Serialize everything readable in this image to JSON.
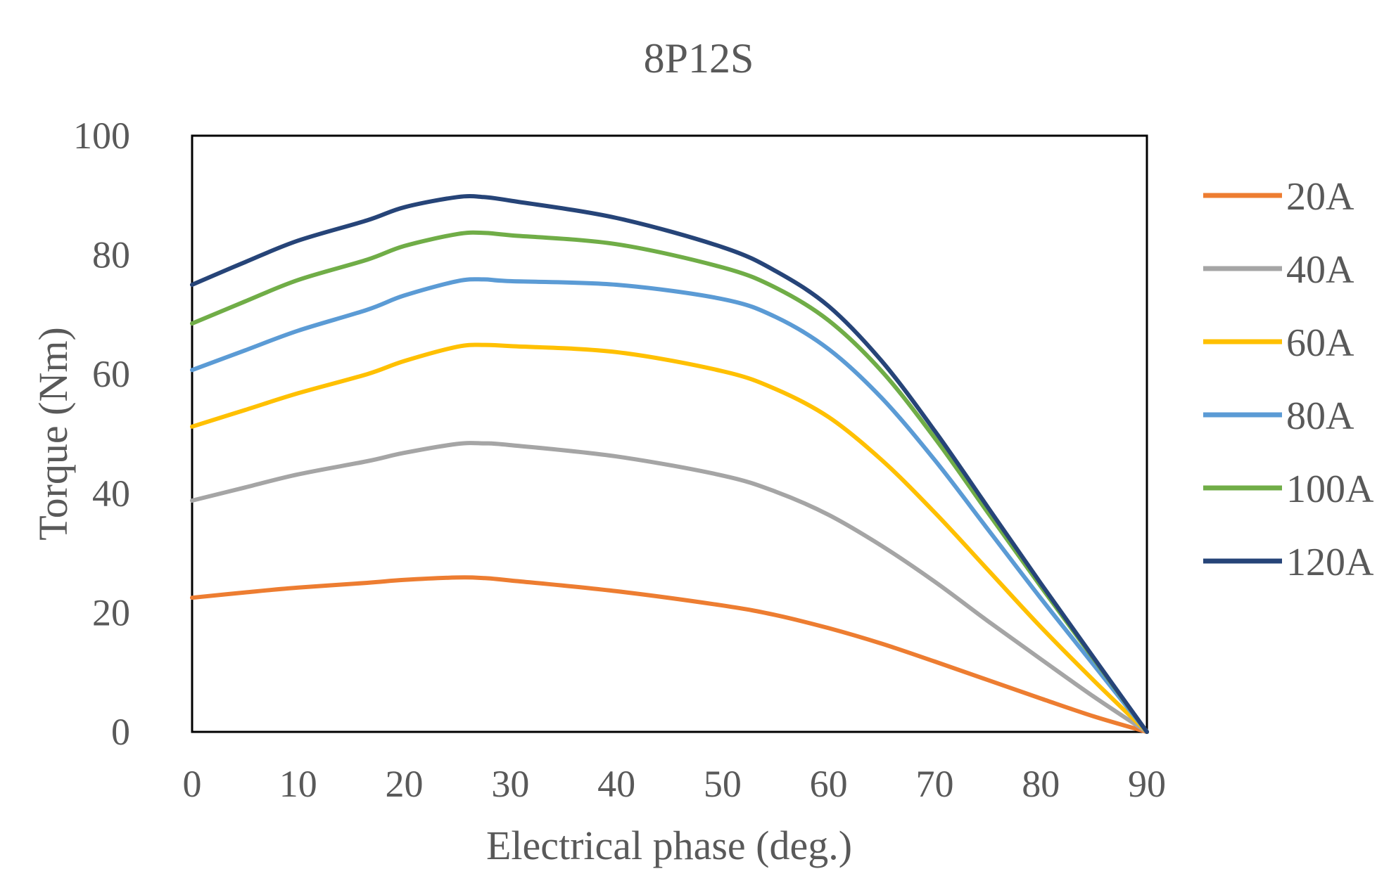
{
  "chart_data": {
    "type": "line",
    "title": "8P12S",
    "xlabel": "Electrical phase (deg.)",
    "ylabel": "Torque (Nm)",
    "xlim": [
      0,
      90
    ],
    "ylim": [
      0,
      100
    ],
    "x_ticks": [
      "0",
      "10",
      "20",
      "30",
      "40",
      "50",
      "60",
      "70",
      "80",
      "90"
    ],
    "y_ticks": [
      "0",
      "20",
      "40",
      "60",
      "80",
      "100"
    ],
    "grid": false,
    "legend_position": "right",
    "x": [
      0,
      5,
      10,
      16.5,
      20,
      25,
      27.5,
      30,
      40,
      50,
      55,
      60,
      65,
      70,
      75,
      80,
      85,
      90
    ],
    "series": [
      {
        "name": "20A",
        "color": "#ED7D31",
        "values": [
          22.5,
          23.4,
          24.2,
          25.0,
          25.5,
          25.9,
          25.8,
          25.4,
          23.6,
          21.2,
          19.6,
          17.4,
          14.8,
          11.8,
          8.7,
          5.6,
          2.6,
          0
        ]
      },
      {
        "name": "40A",
        "color": "#A5A5A5",
        "values": [
          38.8,
          41.0,
          43.2,
          45.4,
          46.8,
          48.3,
          48.4,
          48.1,
          46.2,
          43.0,
          40.3,
          36.4,
          31.2,
          25.2,
          18.6,
          12.2,
          5.9,
          0
        ]
      },
      {
        "name": "60A",
        "color": "#FFC000",
        "values": [
          51.2,
          54.0,
          56.8,
          60.0,
          62.2,
          64.6,
          64.9,
          64.7,
          63.7,
          60.5,
          57.5,
          52.8,
          45.6,
          36.8,
          27.2,
          17.6,
          8.6,
          0
        ]
      },
      {
        "name": "80A",
        "color": "#5B9BD5",
        "values": [
          60.7,
          64.0,
          67.3,
          70.8,
          73.2,
          75.6,
          75.9,
          75.6,
          75.0,
          72.6,
          69.6,
          64.2,
          56.0,
          45.6,
          34.0,
          22.4,
          11.2,
          0
        ]
      },
      {
        "name": "100A",
        "color": "#70AD47",
        "values": [
          68.5,
          72.2,
          75.8,
          79.2,
          81.5,
          83.5,
          83.7,
          83.3,
          81.8,
          77.9,
          74.5,
          69.0,
          60.5,
          49.3,
          36.8,
          24.4,
          12.2,
          0
        ]
      },
      {
        "name": "120A",
        "color": "#264478",
        "values": [
          75.0,
          78.8,
          82.4,
          85.8,
          88.0,
          89.7,
          89.7,
          89.1,
          86.2,
          81.3,
          77.3,
          71.4,
          62.2,
          50.5,
          37.7,
          24.9,
          12.4,
          0
        ]
      }
    ]
  }
}
